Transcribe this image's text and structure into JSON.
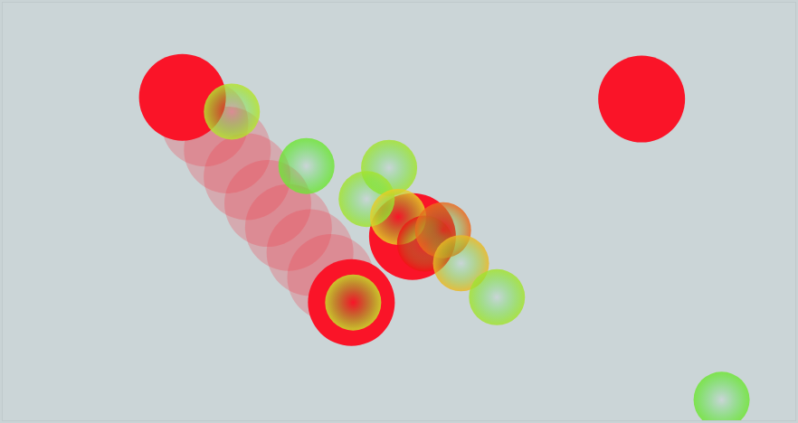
{
  "chart_data": {
    "type": "scatter",
    "xlim": [
      0,
      882
    ],
    "ylim": [
      468,
      0
    ],
    "xticks": [],
    "yticks": [],
    "tick_labels": false,
    "grid": false,
    "series": [
      {
        "color": "rgba(240,60,75,0.28)",
        "marker": "circle",
        "x": [
          225,
          250,
          272,
          295,
          318,
          342,
          365
        ],
        "y": [
          135,
          165,
          195,
          225,
          252,
          280,
          308
        ]
      },
      {
        "color": "#fa1428",
        "marker": "circle",
        "x": [
          200,
          711,
          388,
          456
        ],
        "y": [
          106,
          108,
          336,
          262
        ]
      }
    ],
    "gaze": {
      "x": [
        255,
        338,
        430,
        405,
        440,
        470,
        490,
        510,
        550,
        390,
        800
      ],
      "y": [
        122,
        183,
        185,
        220,
        240,
        270,
        255,
        292,
        330,
        336,
        445
      ],
      "values": [
        0.35,
        0.15,
        0.3,
        0.3,
        0.55,
        1,
        0.8,
        0.6,
        0.3,
        0.4,
        0.15
      ],
      "color_range": [
        0,
        1
      ]
    }
  }
}
